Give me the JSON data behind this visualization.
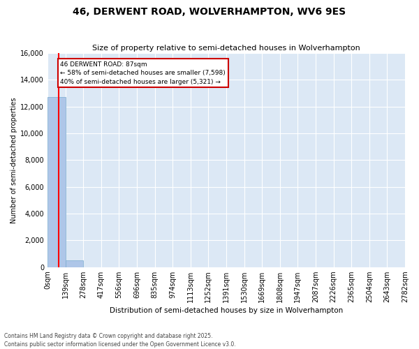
{
  "title": "46, DERWENT ROAD, WOLVERHAMPTON, WV6 9ES",
  "subtitle": "Size of property relative to semi-detached houses in Wolverhampton",
  "xlabel": "Distribution of semi-detached houses by size in Wolverhampton",
  "ylabel": "Number of semi-detached properties",
  "bin_edges": [
    "0sqm",
    "139sqm",
    "278sqm",
    "417sqm",
    "556sqm",
    "696sqm",
    "835sqm",
    "974sqm",
    "1113sqm",
    "1252sqm",
    "1391sqm",
    "1530sqm",
    "1669sqm",
    "1808sqm",
    "1947sqm",
    "2087sqm",
    "2226sqm",
    "2365sqm",
    "2504sqm",
    "2643sqm",
    "2782sqm"
  ],
  "bar_heights": [
    12700,
    500,
    0,
    0,
    0,
    0,
    0,
    0,
    0,
    0,
    0,
    0,
    0,
    0,
    0,
    0,
    0,
    0,
    0,
    0
  ],
  "bar_color": "#aec6e8",
  "bar_edge_color": "#7aaacf",
  "pct_smaller": 58,
  "count_smaller": 7598,
  "pct_larger": 40,
  "count_larger": 5321,
  "annotation_box_color": "#cc0000",
  "ylim": [
    0,
    16000
  ],
  "yticks": [
    0,
    2000,
    4000,
    6000,
    8000,
    10000,
    12000,
    14000,
    16000
  ],
  "background_color": "#dce8f5",
  "grid_color": "#ffffff",
  "footer_line1": "Contains HM Land Registry data © Crown copyright and database right 2025.",
  "footer_line2": "Contains public sector information licensed under the Open Government Licence v3.0."
}
